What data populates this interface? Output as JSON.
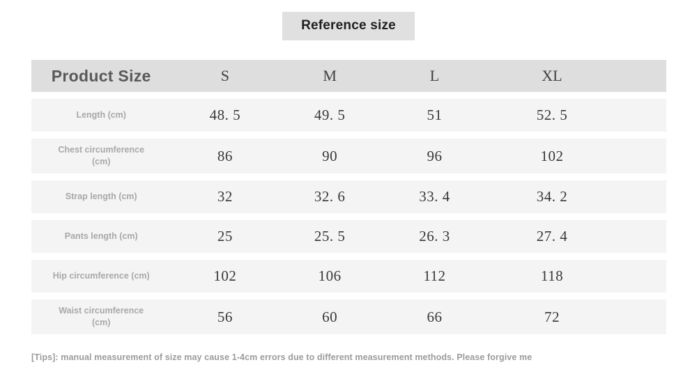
{
  "title": "Reference size",
  "table": {
    "header": {
      "label": "Product Size",
      "sizes": [
        "S",
        "M",
        "L",
        "XL"
      ]
    },
    "rows": [
      {
        "label": "Length (cm)",
        "label2": "",
        "values": [
          "48. 5",
          "49. 5",
          "51",
          "52. 5"
        ]
      },
      {
        "label": "Chest circumference",
        "label2": "(cm)",
        "values": [
          "86",
          "90",
          "96",
          "102"
        ]
      },
      {
        "label": "Strap length (cm)",
        "label2": "",
        "values": [
          "32",
          "32. 6",
          "33. 4",
          "34. 2"
        ]
      },
      {
        "label": "Pants length (cm)",
        "label2": "",
        "values": [
          "25",
          "25. 5",
          "26. 3",
          "27. 4"
        ]
      },
      {
        "label": "Hip circumference (cm)",
        "label2": "",
        "values": [
          "102",
          "106",
          "112",
          "118"
        ]
      },
      {
        "label": "Waist circumference",
        "label2": "(cm)",
        "values": [
          "56",
          "60",
          "66",
          "72"
        ]
      }
    ]
  },
  "footer": {
    "tips": "[Tips]: manual measurement of size may cause 1-4cm errors due to different measurement methods. Please forgive me"
  },
  "colors": {
    "header_band": "#dedede",
    "row_band": "#f4f4f4",
    "title_box": "#e0e0e0",
    "label_text": "#a8a8a8",
    "value_text": "#383838"
  }
}
